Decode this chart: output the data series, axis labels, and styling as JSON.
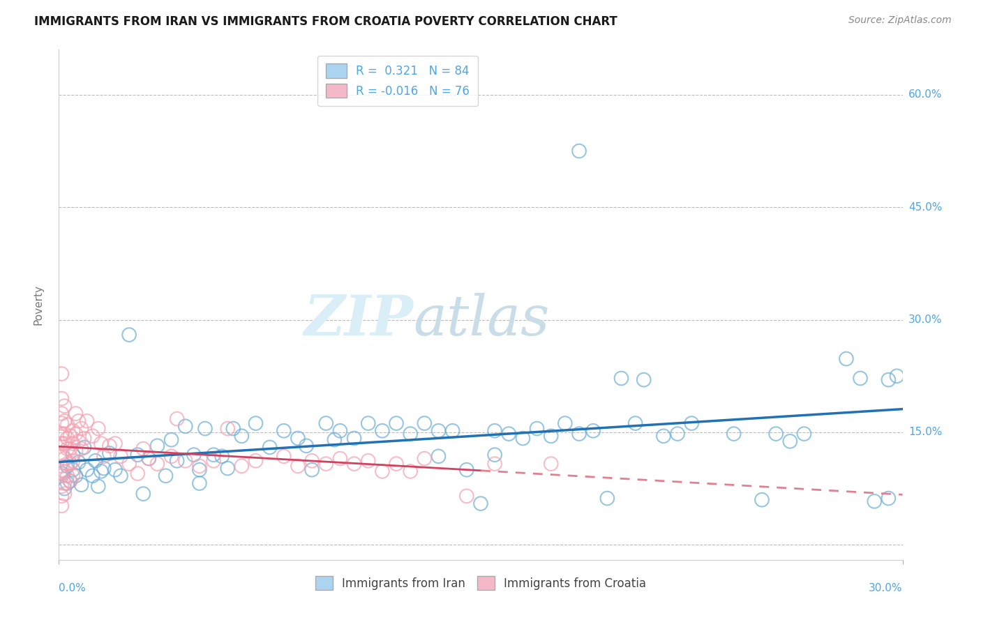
{
  "title": "IMMIGRANTS FROM IRAN VS IMMIGRANTS FROM CROATIA POVERTY CORRELATION CHART",
  "source": "Source: ZipAtlas.com",
  "ylabel": "Poverty",
  "xlim": [
    0.0,
    0.3
  ],
  "ylim": [
    -0.02,
    0.66
  ],
  "yticks": [
    0.0,
    0.15,
    0.3,
    0.45,
    0.6
  ],
  "ytick_labels": [
    "",
    "15.0%",
    "30.0%",
    "45.0%",
    "60.0%"
  ],
  "xtick_labels": [
    "0.0%",
    "30.0%"
  ],
  "legend_iran_r": "0.321",
  "legend_iran_n": "84",
  "legend_croatia_r": "-0.016",
  "legend_croatia_n": "76",
  "iran_color": "#6baed6",
  "croatia_color": "#f4a0b0",
  "trendline_iran_color": "#2171b5",
  "trendline_croatia_color": "#d44060",
  "trendline_croatia_dash_color": "#e08090",
  "background_color": "#ffffff",
  "grid_color": "#bbbbbb",
  "iran_points": [
    [
      0.001,
      0.095
    ],
    [
      0.002,
      0.075
    ],
    [
      0.003,
      0.105
    ],
    [
      0.003,
      0.082
    ],
    [
      0.004,
      0.085
    ],
    [
      0.005,
      0.12
    ],
    [
      0.005,
      0.1
    ],
    [
      0.006,
      0.092
    ],
    [
      0.007,
      0.11
    ],
    [
      0.008,
      0.08
    ],
    [
      0.009,
      0.13
    ],
    [
      0.01,
      0.1
    ],
    [
      0.012,
      0.092
    ],
    [
      0.013,
      0.112
    ],
    [
      0.014,
      0.078
    ],
    [
      0.015,
      0.098
    ],
    [
      0.016,
      0.102
    ],
    [
      0.018,
      0.122
    ],
    [
      0.02,
      0.1
    ],
    [
      0.022,
      0.092
    ],
    [
      0.025,
      0.28
    ],
    [
      0.028,
      0.12
    ],
    [
      0.03,
      0.068
    ],
    [
      0.032,
      0.115
    ],
    [
      0.035,
      0.132
    ],
    [
      0.038,
      0.092
    ],
    [
      0.04,
      0.14
    ],
    [
      0.042,
      0.112
    ],
    [
      0.045,
      0.158
    ],
    [
      0.048,
      0.12
    ],
    [
      0.05,
      0.1
    ],
    [
      0.05,
      0.082
    ],
    [
      0.052,
      0.155
    ],
    [
      0.055,
      0.12
    ],
    [
      0.058,
      0.118
    ],
    [
      0.06,
      0.102
    ],
    [
      0.062,
      0.155
    ],
    [
      0.065,
      0.145
    ],
    [
      0.07,
      0.162
    ],
    [
      0.075,
      0.13
    ],
    [
      0.08,
      0.152
    ],
    [
      0.085,
      0.142
    ],
    [
      0.088,
      0.132
    ],
    [
      0.09,
      0.1
    ],
    [
      0.095,
      0.162
    ],
    [
      0.098,
      0.14
    ],
    [
      0.1,
      0.152
    ],
    [
      0.105,
      0.142
    ],
    [
      0.11,
      0.162
    ],
    [
      0.115,
      0.152
    ],
    [
      0.12,
      0.162
    ],
    [
      0.125,
      0.148
    ],
    [
      0.13,
      0.162
    ],
    [
      0.135,
      0.118
    ],
    [
      0.135,
      0.152
    ],
    [
      0.14,
      0.152
    ],
    [
      0.145,
      0.1
    ],
    [
      0.15,
      0.055
    ],
    [
      0.155,
      0.12
    ],
    [
      0.155,
      0.152
    ],
    [
      0.16,
      0.148
    ],
    [
      0.165,
      0.142
    ],
    [
      0.17,
      0.155
    ],
    [
      0.175,
      0.145
    ],
    [
      0.18,
      0.162
    ],
    [
      0.185,
      0.148
    ],
    [
      0.19,
      0.152
    ],
    [
      0.195,
      0.062
    ],
    [
      0.2,
      0.222
    ],
    [
      0.205,
      0.162
    ],
    [
      0.208,
      0.22
    ],
    [
      0.215,
      0.145
    ],
    [
      0.22,
      0.148
    ],
    [
      0.225,
      0.162
    ],
    [
      0.24,
      0.148
    ],
    [
      0.25,
      0.06
    ],
    [
      0.255,
      0.148
    ],
    [
      0.26,
      0.138
    ],
    [
      0.265,
      0.148
    ],
    [
      0.185,
      0.525
    ],
    [
      0.28,
      0.248
    ],
    [
      0.285,
      0.222
    ],
    [
      0.295,
      0.22
    ],
    [
      0.298,
      0.225
    ],
    [
      0.29,
      0.058
    ],
    [
      0.295,
      0.062
    ]
  ],
  "croatia_points": [
    [
      0.001,
      0.228
    ],
    [
      0.001,
      0.195
    ],
    [
      0.001,
      0.175
    ],
    [
      0.001,
      0.162
    ],
    [
      0.001,
      0.148
    ],
    [
      0.001,
      0.135
    ],
    [
      0.001,
      0.12
    ],
    [
      0.001,
      0.105
    ],
    [
      0.001,
      0.092
    ],
    [
      0.001,
      0.078
    ],
    [
      0.001,
      0.065
    ],
    [
      0.001,
      0.052
    ],
    [
      0.002,
      0.185
    ],
    [
      0.002,
      0.165
    ],
    [
      0.002,
      0.148
    ],
    [
      0.002,
      0.135
    ],
    [
      0.002,
      0.115
    ],
    [
      0.002,
      0.098
    ],
    [
      0.002,
      0.082
    ],
    [
      0.002,
      0.068
    ],
    [
      0.003,
      0.16
    ],
    [
      0.003,
      0.142
    ],
    [
      0.003,
      0.128
    ],
    [
      0.003,
      0.108
    ],
    [
      0.003,
      0.092
    ],
    [
      0.004,
      0.145
    ],
    [
      0.004,
      0.128
    ],
    [
      0.004,
      0.108
    ],
    [
      0.004,
      0.085
    ],
    [
      0.005,
      0.152
    ],
    [
      0.005,
      0.135
    ],
    [
      0.005,
      0.112
    ],
    [
      0.005,
      0.092
    ],
    [
      0.006,
      0.175
    ],
    [
      0.006,
      0.148
    ],
    [
      0.006,
      0.125
    ],
    [
      0.007,
      0.165
    ],
    [
      0.007,
      0.138
    ],
    [
      0.008,
      0.155
    ],
    [
      0.008,
      0.128
    ],
    [
      0.009,
      0.142
    ],
    [
      0.01,
      0.165
    ],
    [
      0.012,
      0.145
    ],
    [
      0.014,
      0.155
    ],
    [
      0.015,
      0.135
    ],
    [
      0.016,
      0.118
    ],
    [
      0.018,
      0.132
    ],
    [
      0.02,
      0.135
    ],
    [
      0.022,
      0.118
    ],
    [
      0.025,
      0.108
    ],
    [
      0.028,
      0.095
    ],
    [
      0.03,
      0.128
    ],
    [
      0.032,
      0.115
    ],
    [
      0.035,
      0.108
    ],
    [
      0.04,
      0.118
    ],
    [
      0.042,
      0.168
    ],
    [
      0.045,
      0.112
    ],
    [
      0.05,
      0.105
    ],
    [
      0.055,
      0.112
    ],
    [
      0.06,
      0.155
    ],
    [
      0.065,
      0.105
    ],
    [
      0.07,
      0.112
    ],
    [
      0.08,
      0.118
    ],
    [
      0.085,
      0.105
    ],
    [
      0.09,
      0.112
    ],
    [
      0.095,
      0.108
    ],
    [
      0.1,
      0.115
    ],
    [
      0.105,
      0.108
    ],
    [
      0.11,
      0.112
    ],
    [
      0.115,
      0.098
    ],
    [
      0.12,
      0.108
    ],
    [
      0.125,
      0.098
    ],
    [
      0.13,
      0.115
    ],
    [
      0.145,
      0.065
    ],
    [
      0.155,
      0.108
    ],
    [
      0.175,
      0.108
    ]
  ]
}
